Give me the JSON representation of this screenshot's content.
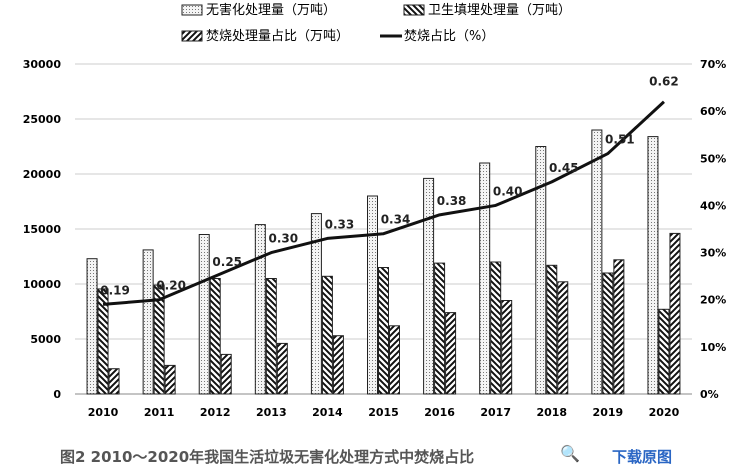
{
  "chart_data": {
    "type": "bar",
    "categories": [
      "2010",
      "2011",
      "2012",
      "2013",
      "2014",
      "2015",
      "2016",
      "2017",
      "2018",
      "2019",
      "2020"
    ],
    "series": [
      {
        "name": "无害化处理量（万吨）",
        "type": "bar",
        "pattern": "dots",
        "values": [
          12300,
          13100,
          14500,
          15400,
          16400,
          18000,
          19600,
          21000,
          22500,
          24000,
          23400
        ]
      },
      {
        "name": "卫生填埋处理量（万吨）",
        "type": "bar",
        "pattern": "backslash",
        "values": [
          9550,
          9900,
          10500,
          10500,
          10700,
          11500,
          11900,
          12000,
          11700,
          11000,
          7700
        ]
      },
      {
        "name": "焚烧处理量占比（万吨）",
        "type": "bar",
        "pattern": "slash",
        "values": [
          2300,
          2600,
          3600,
          4600,
          5300,
          6200,
          7400,
          8500,
          10200,
          12200,
          14600
        ]
      },
      {
        "name": "焚烧占比（%）",
        "type": "line",
        "axis": "right",
        "values": [
          0.19,
          0.2,
          0.25,
          0.3,
          0.33,
          0.34,
          0.38,
          0.4,
          0.45,
          0.51,
          0.62
        ],
        "labels": [
          "0.19",
          "0.20",
          "0.25",
          "0.30",
          "0.33",
          "0.34",
          "0.38",
          "0.40",
          "0.45",
          "0.51",
          "0.62"
        ]
      }
    ],
    "ylim": [
      0,
      30000
    ],
    "yticks": [
      "0",
      "5000",
      "10000",
      "15000",
      "20000",
      "25000",
      "30000"
    ],
    "y2lim": [
      0,
      70
    ],
    "y2ticks": [
      "0%",
      "10%",
      "20%",
      "30%",
      "40%",
      "50%",
      "60%",
      "70%"
    ],
    "grid": true,
    "legend": "top"
  },
  "caption": "图2 2010～2020年我国生活垃圾无害化处理方式中焚烧占比",
  "zoom_icon": "magnifier-plus-icon",
  "download_label": "下载原图"
}
